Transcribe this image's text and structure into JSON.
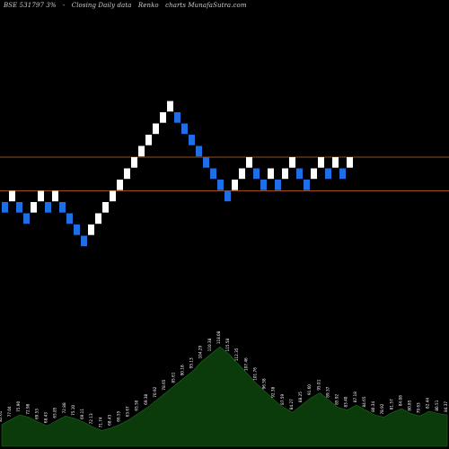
{
  "header": {
    "ticker": "BSE 531797 3%",
    "symbol": "-",
    "mode": "Closing Daily data",
    "chart_type": "Renko",
    "site": "charts MunafaSutra.com"
  },
  "colors": {
    "background": "#000000",
    "up_brick": "#ffffff",
    "down_brick": "#1e6fe6",
    "level_line": "#d2691e",
    "volume_fill": "#0b3a0b",
    "volume_label": "#ffffff"
  },
  "chart_data": [
    {
      "type": "renko",
      "brick_size_pct": 3,
      "ylim": [
        0,
        40
      ],
      "levels": [
        26.0,
        23.0
      ],
      "bricks": [
        {
          "dir": "down",
          "level": 21
        },
        {
          "dir": "up",
          "level": 22
        },
        {
          "dir": "down",
          "level": 21
        },
        {
          "dir": "down",
          "level": 20
        },
        {
          "dir": "up",
          "level": 21
        },
        {
          "dir": "up",
          "level": 22
        },
        {
          "dir": "down",
          "level": 21
        },
        {
          "dir": "up",
          "level": 22
        },
        {
          "dir": "down",
          "level": 21
        },
        {
          "dir": "down",
          "level": 20
        },
        {
          "dir": "down",
          "level": 19
        },
        {
          "dir": "down",
          "level": 18
        },
        {
          "dir": "up",
          "level": 19
        },
        {
          "dir": "up",
          "level": 20
        },
        {
          "dir": "up",
          "level": 21
        },
        {
          "dir": "up",
          "level": 22
        },
        {
          "dir": "up",
          "level": 23
        },
        {
          "dir": "up",
          "level": 24
        },
        {
          "dir": "up",
          "level": 25
        },
        {
          "dir": "up",
          "level": 26
        },
        {
          "dir": "up",
          "level": 27
        },
        {
          "dir": "up",
          "level": 28
        },
        {
          "dir": "up",
          "level": 29
        },
        {
          "dir": "up",
          "level": 30
        },
        {
          "dir": "down",
          "level": 29
        },
        {
          "dir": "down",
          "level": 28
        },
        {
          "dir": "down",
          "level": 27
        },
        {
          "dir": "down",
          "level": 26
        },
        {
          "dir": "down",
          "level": 25
        },
        {
          "dir": "down",
          "level": 24
        },
        {
          "dir": "down",
          "level": 23
        },
        {
          "dir": "down",
          "level": 22
        },
        {
          "dir": "up",
          "level": 23
        },
        {
          "dir": "up",
          "level": 24
        },
        {
          "dir": "up",
          "level": 25
        },
        {
          "dir": "down",
          "level": 24
        },
        {
          "dir": "down",
          "level": 23
        },
        {
          "dir": "up",
          "level": 24
        },
        {
          "dir": "down",
          "level": 23
        },
        {
          "dir": "up",
          "level": 24
        },
        {
          "dir": "up",
          "level": 25
        },
        {
          "dir": "down",
          "level": 24
        },
        {
          "dir": "down",
          "level": 23
        },
        {
          "dir": "up",
          "level": 24
        },
        {
          "dir": "up",
          "level": 25
        },
        {
          "dir": "down",
          "level": 24
        },
        {
          "dir": "up",
          "level": 25
        },
        {
          "dir": "down",
          "level": 24
        },
        {
          "dir": "up",
          "level": 25
        }
      ]
    },
    {
      "type": "area",
      "volume": [
        18,
        22,
        26,
        24,
        20,
        17,
        21,
        25,
        23,
        20,
        16,
        13,
        15,
        18,
        22,
        27,
        32,
        38,
        44,
        50,
        56,
        62,
        70,
        76,
        82,
        76,
        68,
        60,
        52,
        45,
        38,
        32,
        28,
        34,
        40,
        44,
        38,
        32,
        30,
        34,
        30,
        26,
        24,
        28,
        31,
        27,
        25,
        29,
        27,
        26
      ],
      "labels": [
        "82.61",
        "77.04",
        "75.90",
        "72.98",
        "69.53",
        "68.43",
        "65.85",
        "72.88",
        "75.10",
        "69.11",
        "72.13",
        "71.74",
        "68.43",
        "66.55",
        "63.67",
        "65.50",
        "69.38",
        "70.92",
        "78.65",
        "85.61",
        "90.18",
        "95.13",
        "104.29",
        "110.38",
        "118.08",
        "115.58",
        "112.35",
        "107.46",
        "101.76",
        "96.58",
        "92.38",
        "87.59",
        "84.27",
        "88.25",
        "91.60",
        "95.01",
        "89.37",
        "85.92",
        "83.40",
        "87.18",
        "84.65",
        "80.34",
        "78.92",
        "81.57",
        "84.08",
        "80.85",
        "79.63",
        "82.44",
        "80.51",
        "84.37"
      ]
    }
  ]
}
